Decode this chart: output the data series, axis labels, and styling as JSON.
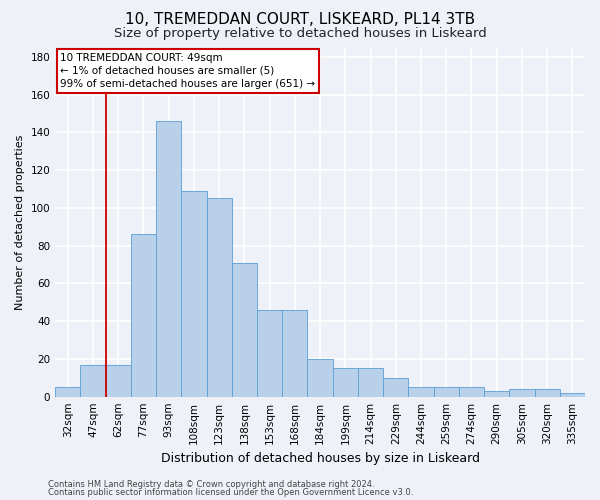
{
  "title1": "10, TREMEDDAN COURT, LISKEARD, PL14 3TB",
  "title2": "Size of property relative to detached houses in Liskeard",
  "xlabel": "Distribution of detached houses by size in Liskeard",
  "ylabel": "Number of detached properties",
  "categories": [
    "32sqm",
    "47sqm",
    "62sqm",
    "77sqm",
    "93sqm",
    "108sqm",
    "123sqm",
    "138sqm",
    "153sqm",
    "168sqm",
    "184sqm",
    "199sqm",
    "214sqm",
    "229sqm",
    "244sqm",
    "259sqm",
    "274sqm",
    "290sqm",
    "305sqm",
    "320sqm",
    "335sqm"
  ],
  "values": [
    5,
    17,
    17,
    86,
    146,
    109,
    105,
    71,
    46,
    46,
    20,
    15,
    15,
    10,
    5,
    5,
    5,
    3,
    4,
    4,
    2
  ],
  "bar_color": "#b8d0ea",
  "bar_edge_color": "#5a9fd4",
  "ylim": [
    0,
    185
  ],
  "yticks": [
    0,
    20,
    40,
    60,
    80,
    100,
    120,
    140,
    160,
    180
  ],
  "annotation_line1": "10 TREMEDDAN COURT: 49sqm",
  "annotation_line2": "← 1% of detached houses are smaller (5)",
  "annotation_line3": "99% of semi-detached houses are larger (651) →",
  "annotation_box_color": "#ffffff",
  "annotation_border_color": "#cc0000",
  "footer1": "Contains HM Land Registry data © Crown copyright and database right 2024.",
  "footer2": "Contains public sector information licensed under the Open Government Licence v3.0.",
  "background_color": "#eef2f8",
  "grid_color": "#ffffff",
  "title1_fontsize": 11,
  "title2_fontsize": 9.5,
  "xlabel_fontsize": 9,
  "ylabel_fontsize": 8,
  "tick_fontsize": 7.5,
  "annot_fontsize": 7.5,
  "footer_fontsize": 6
}
